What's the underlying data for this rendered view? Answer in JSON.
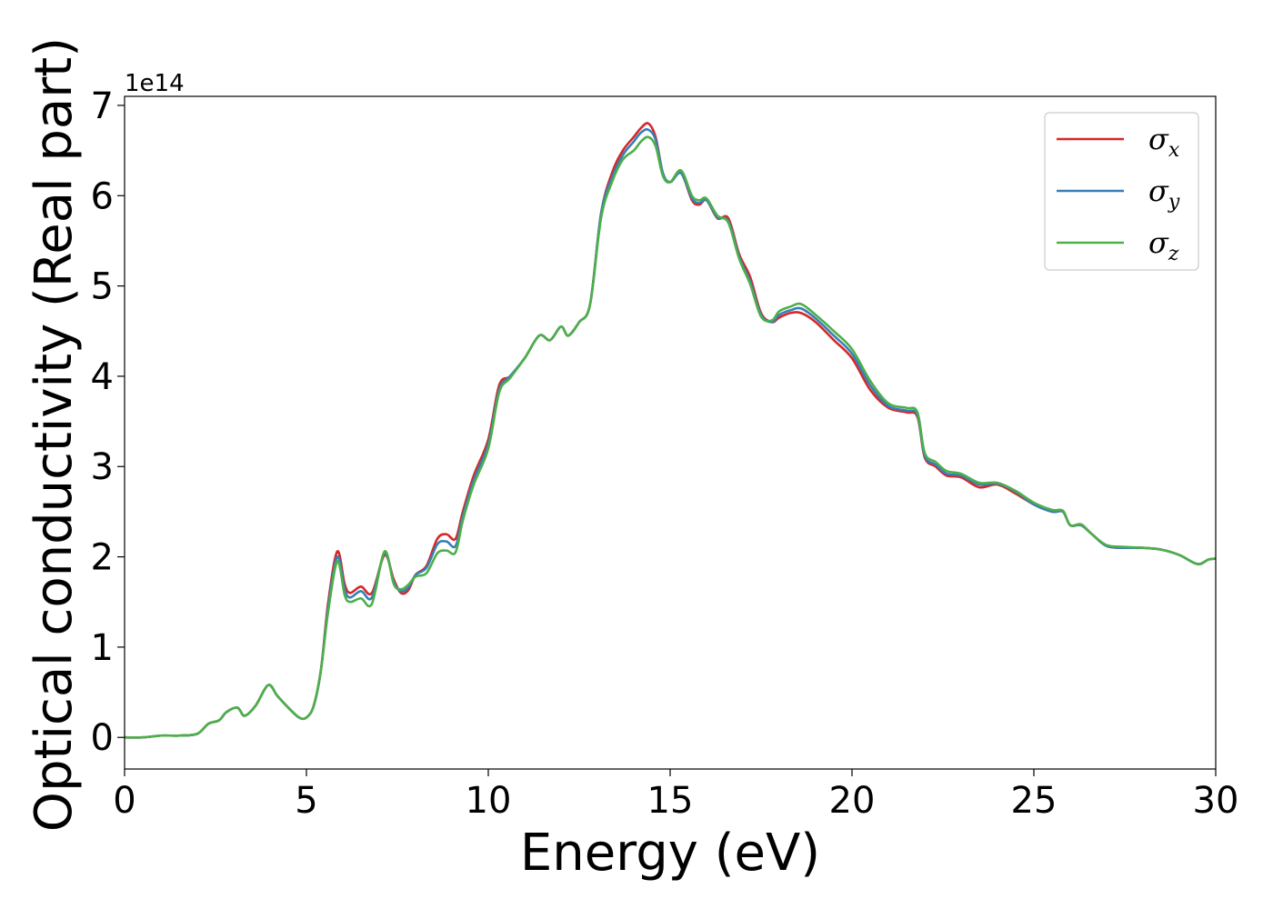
{
  "chart_data": {
    "type": "line",
    "title": "",
    "xlabel": "Energy (eV)",
    "ylabel": "Optical conductivity (Real part)",
    "y_offset_label": "1e14",
    "xlim": [
      0,
      30
    ],
    "ylim": [
      -0.35,
      7.1
    ],
    "x_ticks": [
      0,
      5,
      10,
      15,
      20,
      25,
      30
    ],
    "y_ticks": [
      0,
      1,
      2,
      3,
      4,
      5,
      6,
      7
    ],
    "grid": false,
    "legend_position": "top-right",
    "x": [
      0,
      0.5,
      1.0,
      1.5,
      2.0,
      2.3,
      2.6,
      2.8,
      3.1,
      3.3,
      3.6,
      3.95,
      4.2,
      4.5,
      4.8,
      5.0,
      5.2,
      5.4,
      5.6,
      5.85,
      6.05,
      6.2,
      6.5,
      6.8,
      7.15,
      7.4,
      7.6,
      7.8,
      8.0,
      8.3,
      8.6,
      8.85,
      9.1,
      9.3,
      9.6,
      10.0,
      10.3,
      10.6,
      11.0,
      11.4,
      11.7,
      12.0,
      12.2,
      12.5,
      12.8,
      13.1,
      13.4,
      13.7,
      14.0,
      14.2,
      14.4,
      14.6,
      14.8,
      15.0,
      15.3,
      15.6,
      15.8,
      16.0,
      16.3,
      16.6,
      16.9,
      17.2,
      17.5,
      17.8,
      18.0,
      18.3,
      18.6,
      19.0,
      19.5,
      20.0,
      20.5,
      21.0,
      21.5,
      21.8,
      22.0,
      22.3,
      22.6,
      23.0,
      23.5,
      24.0,
      24.5,
      25.0,
      25.5,
      25.8,
      26.0,
      26.3,
      26.6,
      27.0,
      27.5,
      28.0,
      28.5,
      29.0,
      29.5,
      29.8,
      30.0
    ],
    "series": [
      {
        "name": "σx",
        "color": "#d62728",
        "values": [
          0.0,
          0.0,
          0.02,
          0.02,
          0.04,
          0.15,
          0.19,
          0.28,
          0.33,
          0.24,
          0.35,
          0.58,
          0.46,
          0.33,
          0.22,
          0.22,
          0.35,
          0.75,
          1.5,
          2.06,
          1.7,
          1.6,
          1.67,
          1.6,
          2.02,
          1.75,
          1.6,
          1.63,
          1.8,
          1.9,
          2.2,
          2.25,
          2.2,
          2.5,
          2.9,
          3.3,
          3.9,
          4.0,
          4.2,
          4.45,
          4.4,
          4.55,
          4.45,
          4.6,
          4.8,
          5.8,
          6.25,
          6.5,
          6.65,
          6.75,
          6.8,
          6.65,
          6.25,
          6.15,
          6.25,
          5.95,
          5.9,
          5.95,
          5.75,
          5.75,
          5.35,
          5.1,
          4.7,
          4.6,
          4.65,
          4.7,
          4.7,
          4.6,
          4.4,
          4.2,
          3.85,
          3.65,
          3.6,
          3.55,
          3.1,
          3.0,
          2.9,
          2.88,
          2.77,
          2.8,
          2.7,
          2.58,
          2.5,
          2.5,
          2.35,
          2.35,
          2.25,
          2.12,
          2.1,
          2.1,
          2.08,
          2.02,
          1.92,
          1.97,
          1.98
        ]
      },
      {
        "name": "σy",
        "color": "#377eb8",
        "values": [
          0.0,
          0.0,
          0.02,
          0.02,
          0.04,
          0.15,
          0.19,
          0.28,
          0.33,
          0.24,
          0.35,
          0.58,
          0.46,
          0.33,
          0.22,
          0.22,
          0.35,
          0.75,
          1.45,
          2.0,
          1.64,
          1.55,
          1.62,
          1.55,
          2.04,
          1.72,
          1.62,
          1.66,
          1.8,
          1.88,
          2.14,
          2.17,
          2.12,
          2.45,
          2.85,
          3.25,
          3.85,
          4.0,
          4.2,
          4.45,
          4.4,
          4.55,
          4.45,
          4.6,
          4.8,
          5.8,
          6.2,
          6.45,
          6.6,
          6.7,
          6.73,
          6.62,
          6.25,
          6.15,
          6.25,
          5.97,
          5.92,
          5.95,
          5.76,
          5.72,
          5.32,
          5.05,
          4.68,
          4.6,
          4.68,
          4.73,
          4.75,
          4.64,
          4.45,
          4.25,
          3.9,
          3.67,
          3.62,
          3.57,
          3.12,
          3.02,
          2.92,
          2.9,
          2.8,
          2.81,
          2.72,
          2.58,
          2.5,
          2.5,
          2.35,
          2.35,
          2.25,
          2.12,
          2.1,
          2.1,
          2.08,
          2.02,
          1.92,
          1.97,
          1.98
        ]
      },
      {
        "name": "σz",
        "color": "#4daf4a",
        "values": [
          0.0,
          0.0,
          0.02,
          0.02,
          0.04,
          0.15,
          0.19,
          0.28,
          0.33,
          0.24,
          0.35,
          0.58,
          0.46,
          0.33,
          0.22,
          0.22,
          0.35,
          0.75,
          1.4,
          1.95,
          1.58,
          1.5,
          1.54,
          1.48,
          2.06,
          1.7,
          1.64,
          1.69,
          1.78,
          1.82,
          2.04,
          2.07,
          2.05,
          2.4,
          2.8,
          3.2,
          3.82,
          3.98,
          4.2,
          4.45,
          4.4,
          4.55,
          4.45,
          4.6,
          4.8,
          5.75,
          6.15,
          6.4,
          6.5,
          6.6,
          6.65,
          6.55,
          6.22,
          6.15,
          6.28,
          6.0,
          5.95,
          5.97,
          5.78,
          5.7,
          5.3,
          5.02,
          4.66,
          4.62,
          4.72,
          4.77,
          4.8,
          4.68,
          4.5,
          4.3,
          3.95,
          3.7,
          3.65,
          3.6,
          3.15,
          3.05,
          2.95,
          2.92,
          2.82,
          2.82,
          2.73,
          2.6,
          2.52,
          2.51,
          2.35,
          2.36,
          2.25,
          2.13,
          2.11,
          2.1,
          2.08,
          2.02,
          1.92,
          1.97,
          1.98
        ]
      }
    ]
  }
}
